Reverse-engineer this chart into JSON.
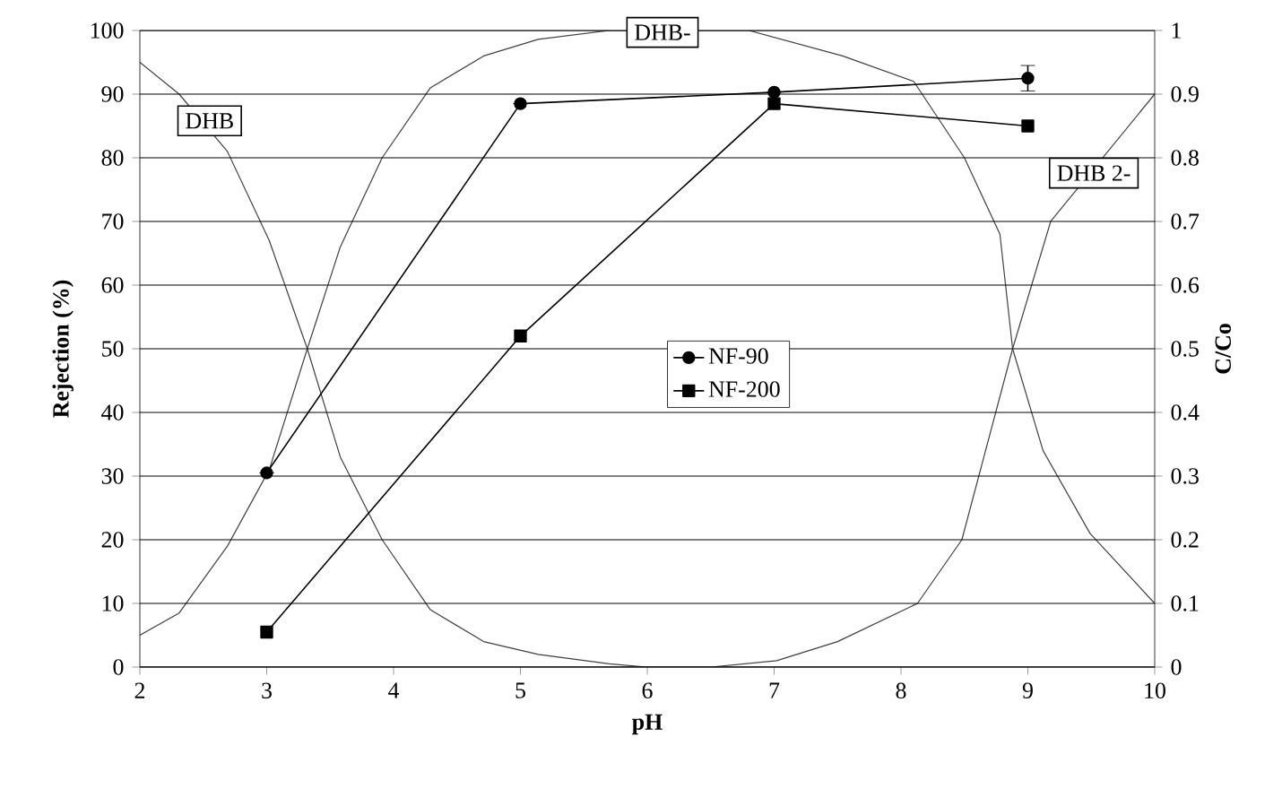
{
  "chart_data": {
    "type": "line",
    "xlabel": "pH",
    "ylabel": "Rejection (%)",
    "y2label": "C/Co",
    "xlim": [
      2,
      10
    ],
    "xticks": [
      2,
      3,
      4,
      5,
      6,
      7,
      8,
      9,
      10
    ],
    "ylim": [
      0,
      100
    ],
    "yticks": [
      0,
      10,
      20,
      30,
      40,
      50,
      60,
      70,
      80,
      90,
      100
    ],
    "y2lim": [
      0,
      1
    ],
    "y2ticks": [
      0,
      0.1,
      0.2,
      0.3,
      0.4,
      0.5,
      0.6,
      0.7,
      0.8,
      0.9,
      1
    ],
    "grid": "y",
    "legend": "center",
    "series": [
      {
        "name": "NF-90",
        "color": "#000000",
        "marker": "circle",
        "x": [
          3,
          5,
          7,
          9
        ],
        "values": [
          30.5,
          88.5,
          90.3,
          92.5
        ],
        "errors": [
          null,
          null,
          null,
          2
        ]
      },
      {
        "name": "NF-200",
        "color": "#000000",
        "marker": "square",
        "x": [
          3,
          5,
          7,
          9
        ],
        "values": [
          5.5,
          52,
          88.5,
          85
        ]
      },
      {
        "axis": "y2",
        "color": "#404040",
        "marker": "none",
        "x": [
          2,
          2.31,
          2.69,
          3.02,
          3.32,
          3.58,
          3.91,
          4.29,
          4.71,
          5.14,
          5.7,
          6,
          7,
          8,
          9,
          10
        ],
        "values": [
          0.95,
          0.9,
          0.81,
          0.67,
          0.5,
          0.33,
          0.2,
          0.09,
          0.04,
          0.02,
          0.005,
          0,
          0,
          0,
          0,
          0
        ]
      },
      {
        "axis": "y2",
        "color": "#404040",
        "marker": "none",
        "x": [
          2,
          2.31,
          2.69,
          3.02,
          3.32,
          3.58,
          3.91,
          4.29,
          4.71,
          5.14,
          5.7,
          6.8,
          7.54,
          8.1,
          8.5,
          8.78,
          8.88,
          9.12,
          9.49,
          10
        ],
        "values": [
          0.05,
          0.085,
          0.19,
          0.31,
          0.5,
          0.66,
          0.8,
          0.91,
          0.96,
          0.986,
          1,
          1,
          0.96,
          0.92,
          0.8,
          0.68,
          0.5,
          0.34,
          0.21,
          0.1
        ]
      },
      {
        "axis": "y2",
        "color": "#404040",
        "marker": "none",
        "x": [
          2,
          6,
          6.5,
          7.02,
          7.5,
          8.13,
          8.48,
          8.88,
          9.18,
          10
        ],
        "values": [
          0,
          0,
          0,
          0.01,
          0.04,
          0.1,
          0.2,
          0.5,
          0.7,
          0.9
        ]
      }
    ],
    "annotations": [
      {
        "text": "DHB",
        "x": 2.55,
        "y": 85.8
      },
      {
        "text": "DHB-",
        "x": 6.12,
        "y": 99.7
      },
      {
        "text": "DHB 2-",
        "x": 9.52,
        "y": 77.6
      }
    ]
  }
}
